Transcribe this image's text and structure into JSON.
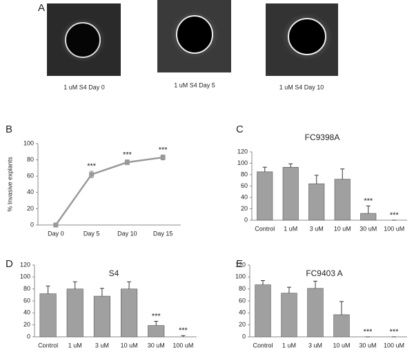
{
  "figure": {
    "panel_labels": [
      "A",
      "B",
      "C",
      "D",
      "E"
    ],
    "images": [
      {
        "caption": "1 uM S4 Day 0"
      },
      {
        "caption": "1 uM S4 Day 5"
      },
      {
        "caption": "1 uM S4 Day 10"
      }
    ]
  },
  "chart_data": [
    {
      "type": "line",
      "ylabel": "% Invasive explants",
      "categories": [
        "Day 0",
        "Day 5",
        "Day 10",
        "Day 15"
      ],
      "values": [
        0,
        62,
        77,
        83
      ],
      "errors": [
        0,
        4,
        3,
        3
      ],
      "significance": [
        null,
        "***",
        "***",
        "***"
      ],
      "color": "#999999",
      "ylim": [
        0,
        100
      ],
      "yticks": [
        0,
        20,
        40,
        60,
        80,
        100
      ]
    },
    {
      "type": "bar",
      "title": "FC9398A",
      "categories": [
        "Control",
        "1 uM",
        "3 uM",
        "10 uM",
        "30 uM",
        "100 uM"
      ],
      "values": [
        85,
        93,
        64,
        72,
        12,
        0
      ],
      "errors": [
        8,
        6,
        15,
        18,
        13,
        0
      ],
      "significance": [
        null,
        null,
        null,
        null,
        "***",
        "***"
      ],
      "color": "#a0a0a0",
      "ylim": [
        0,
        120
      ],
      "yticks": [
        0,
        20,
        40,
        60,
        80,
        100,
        120
      ]
    },
    {
      "type": "bar",
      "title": "S4",
      "categories": [
        "Control",
        "1 uM",
        "3 uM",
        "10 uM",
        "30 uM",
        "100 uM"
      ],
      "values": [
        72,
        80,
        68,
        80,
        19,
        0
      ],
      "errors": [
        13,
        12,
        13,
        12,
        7,
        2
      ],
      "significance": [
        null,
        null,
        null,
        null,
        "***",
        "***"
      ],
      "color": "#a0a0a0",
      "ylim": [
        0,
        120
      ],
      "yticks": [
        0,
        20,
        40,
        60,
        80,
        100,
        120
      ]
    },
    {
      "type": "bar",
      "title": "FC9403 A",
      "categories": [
        "Control",
        "1 uM",
        "3 uM",
        "10 uM",
        "30 uM",
        "100 uM"
      ],
      "values": [
        87,
        73,
        81,
        37,
        0,
        0
      ],
      "errors": [
        7,
        10,
        12,
        22,
        0,
        0
      ],
      "significance": [
        null,
        null,
        null,
        null,
        "***",
        "***"
      ],
      "color": "#a0a0a0",
      "ylim": [
        0,
        120
      ],
      "yticks": [
        0,
        20,
        40,
        60,
        80,
        100,
        120
      ]
    }
  ]
}
